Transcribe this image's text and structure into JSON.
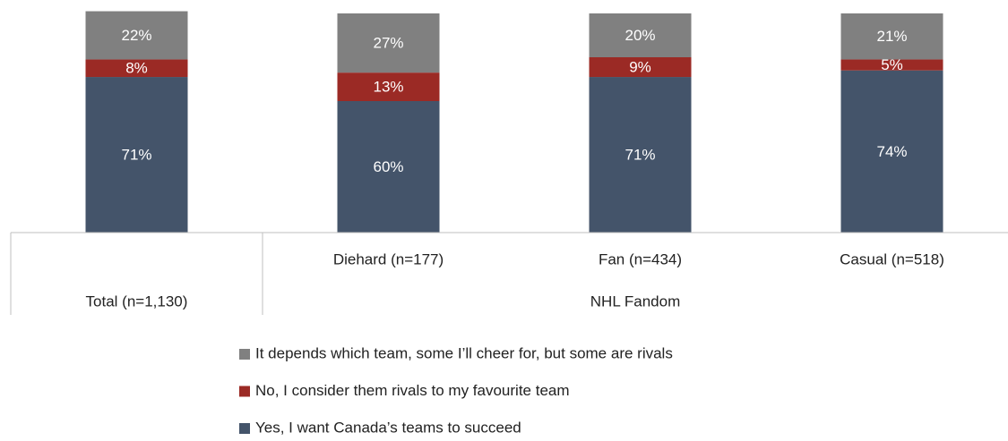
{
  "chart_data": {
    "type": "stacked_bar",
    "categories": [
      "Total (n=1,130)",
      "Diehard (n=177)",
      "Fan (n=434)",
      "Casual (n=518)"
    ],
    "category_group": "NHL Fandom",
    "series": [
      {
        "name": "Yes, I want Canada’s teams to succeed",
        "color": "#44546a",
        "values": [
          71,
          60,
          71,
          74
        ],
        "value_labels": [
          "71%",
          "60%",
          "71%",
          "74%"
        ]
      },
      {
        "name": "No, I consider them rivals to my favourite team",
        "color": "#9b2a25",
        "values": [
          8,
          13,
          9,
          5
        ],
        "value_labels": [
          "8%",
          "13%",
          "9%",
          "5%"
        ]
      },
      {
        "name": "It depends which team, some I’ll cheer for, but some are rivals",
        "color": "#808080",
        "values": [
          22,
          27,
          20,
          21
        ],
        "value_labels": [
          "22%",
          "27%",
          "20%",
          "21%"
        ]
      }
    ],
    "ylim": [
      0,
      100
    ]
  }
}
